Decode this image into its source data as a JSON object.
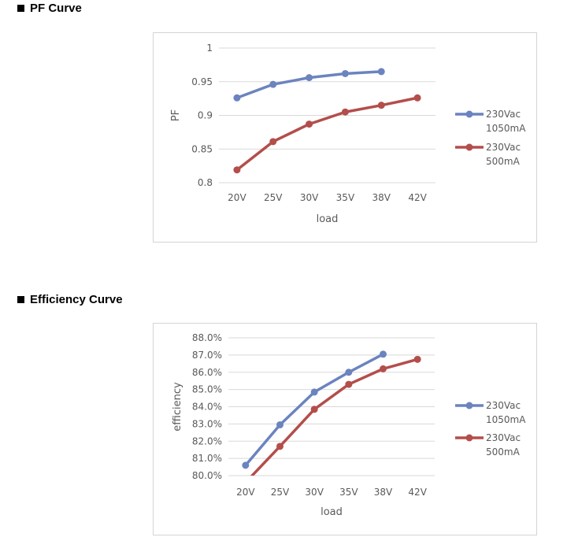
{
  "sections": [
    {
      "title": "PF Curve"
    },
    {
      "title": "Efficiency Curve"
    }
  ],
  "chart_data": [
    {
      "type": "line",
      "xlabel": "load",
      "ylabel": "PF",
      "categories": [
        "20V",
        "25V",
        "30V",
        "35V",
        "38V",
        "42V"
      ],
      "ylim": [
        0.8,
        1
      ],
      "yticks": [
        "0.8",
        "0.85",
        "0.9",
        "0.95",
        "1"
      ],
      "grid": true,
      "legend_position": "right",
      "series": [
        {
          "name": "230Vac 1050mA",
          "color": "#6b84bf",
          "values": [
            0.926,
            0.946,
            0.956,
            0.962,
            0.965,
            null
          ]
        },
        {
          "name": "230Vac 500mA",
          "color": "#b34e4b",
          "values": [
            0.819,
            0.861,
            0.887,
            0.905,
            0.915,
            0.926
          ]
        }
      ]
    },
    {
      "type": "line",
      "xlabel": "load",
      "ylabel": "efficiency",
      "categories": [
        "20V",
        "25V",
        "30V",
        "35V",
        "38V",
        "42V"
      ],
      "ylim": [
        80,
        88
      ],
      "yticks": [
        "80.0%",
        "81.0%",
        "82.0%",
        "83.0%",
        "84.0%",
        "85.0%",
        "86.0%",
        "87.0%",
        "88.0%"
      ],
      "grid": true,
      "legend_position": "right",
      "series": [
        {
          "name": "230Vac 1050mA",
          "color": "#6b84bf",
          "values": [
            80.6,
            82.95,
            84.85,
            86.0,
            87.05,
            null
          ]
        },
        {
          "name": "230Vac 500mA",
          "color": "#b34e4b",
          "values": [
            79.6,
            81.7,
            83.85,
            85.3,
            86.2,
            86.75
          ]
        }
      ]
    }
  ]
}
